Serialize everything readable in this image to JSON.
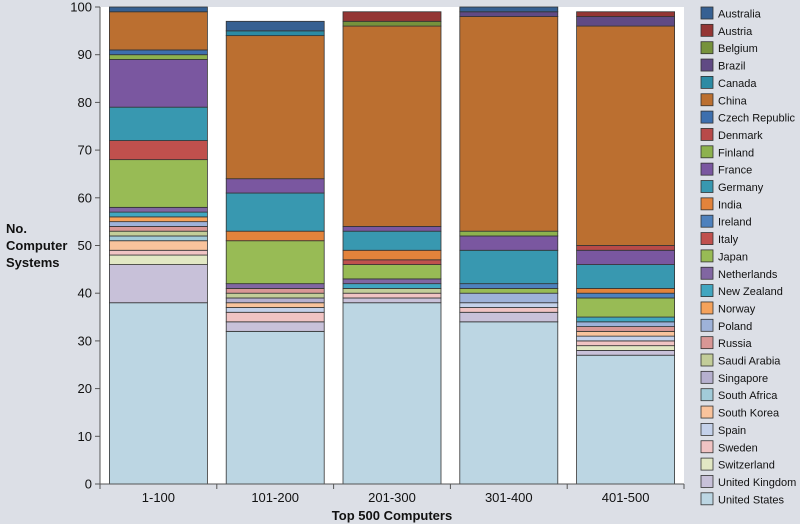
{
  "chart_data": {
    "type": "bar",
    "stacked": true,
    "title": "",
    "xlabel": "Top 500 Computers",
    "ylabel": [
      "No.",
      "Computer",
      "Systems"
    ],
    "ylim": [
      0,
      100
    ],
    "yticks": [
      0,
      10,
      20,
      30,
      40,
      50,
      60,
      70,
      80,
      90,
      100
    ],
    "categories": [
      "1-100",
      "101-200",
      "201-300",
      "301-400",
      "401-500"
    ],
    "legend_position": "right",
    "series": [
      {
        "name": "United States",
        "color": "#bcd6e3",
        "values": [
          38,
          32,
          38,
          34,
          27
        ]
      },
      {
        "name": "United Kingdom",
        "color": "#c8c1d9",
        "values": [
          8,
          2,
          1,
          2,
          1
        ]
      },
      {
        "name": "Switzerland",
        "color": "#e2e8c4",
        "values": [
          2,
          0,
          0,
          0,
          1
        ]
      },
      {
        "name": "Sweden",
        "color": "#f0c3c3",
        "values": [
          1,
          2,
          1,
          1,
          1
        ]
      },
      {
        "name": "Spain",
        "color": "#c4d1ea",
        "values": [
          0,
          1,
          0,
          1,
          1
        ]
      },
      {
        "name": "South Korea",
        "color": "#f9c39c",
        "values": [
          2,
          1,
          0,
          0,
          1
        ]
      },
      {
        "name": "South Africa",
        "color": "#a2cbd9",
        "values": [
          1,
          0,
          0,
          0,
          0
        ]
      },
      {
        "name": "Singapore",
        "color": "#b6b0cf",
        "values": [
          0,
          1,
          0,
          0,
          0
        ]
      },
      {
        "name": "Saudi Arabia",
        "color": "#c3cd99",
        "values": [
          1,
          1,
          1,
          0,
          0
        ]
      },
      {
        "name": "Russia",
        "color": "#d99795",
        "values": [
          1,
          1,
          0,
          0,
          1
        ]
      },
      {
        "name": "Poland",
        "color": "#9eb2d9",
        "values": [
          1,
          0,
          0,
          2,
          1
        ]
      },
      {
        "name": "Norway",
        "color": "#f5a25b",
        "values": [
          1,
          0,
          0,
          0,
          0
        ]
      },
      {
        "name": "New Zealand",
        "color": "#41a6c0",
        "values": [
          1,
          0,
          1,
          0,
          1
        ]
      },
      {
        "name": "Netherlands",
        "color": "#8166a2",
        "values": [
          1,
          1,
          1,
          0,
          0
        ]
      },
      {
        "name": "Japan",
        "color": "#98bb55",
        "values": [
          10,
          9,
          3,
          1,
          4
        ]
      },
      {
        "name": "Italy",
        "color": "#c0504d",
        "values": [
          4,
          0,
          1,
          0,
          0
        ]
      },
      {
        "name": "Ireland",
        "color": "#4e81bd",
        "values": [
          0,
          0,
          0,
          1,
          1
        ]
      },
      {
        "name": "India",
        "color": "#e3833b",
        "values": [
          0,
          2,
          2,
          0,
          1
        ]
      },
      {
        "name": "Germany",
        "color": "#3898b0",
        "values": [
          7,
          8,
          4,
          7,
          5
        ]
      },
      {
        "name": "France",
        "color": "#7a57a0",
        "values": [
          10,
          3,
          1,
          3,
          3
        ]
      },
      {
        "name": "Finland",
        "color": "#8db24e",
        "values": [
          1,
          0,
          0,
          1,
          0
        ]
      },
      {
        "name": "Denmark",
        "color": "#b84a49",
        "values": [
          0,
          0,
          0,
          0,
          1
        ]
      },
      {
        "name": "Czech Republic",
        "color": "#3d6fae",
        "values": [
          1,
          0,
          0,
          0,
          0
        ]
      },
      {
        "name": "China",
        "color": "#bb6f30",
        "values": [
          8,
          30,
          42,
          45,
          46
        ]
      },
      {
        "name": "Canada",
        "color": "#2c8ba4",
        "values": [
          0,
          1,
          0,
          0,
          0
        ]
      },
      {
        "name": "Brazil",
        "color": "#604a84",
        "values": [
          0,
          0,
          0,
          1,
          2
        ]
      },
      {
        "name": "Belgium",
        "color": "#76923c",
        "values": [
          0,
          0,
          1,
          0,
          0
        ]
      },
      {
        "name": "Austria",
        "color": "#943634",
        "values": [
          0,
          0,
          2,
          0,
          1
        ]
      },
      {
        "name": "Australia",
        "color": "#366092",
        "values": [
          1,
          2,
          0,
          1,
          0
        ]
      }
    ],
    "legend_order": [
      "Australia",
      "Austria",
      "Belgium",
      "Brazil",
      "Canada",
      "China",
      "Czech Republic",
      "Denmark",
      "Finland",
      "France",
      "Germany",
      "India",
      "Ireland",
      "Italy",
      "Japan",
      "Netherlands",
      "New Zealand",
      "Norway",
      "Poland",
      "Russia",
      "Saudi Arabia",
      "Singapore",
      "South Africa",
      "South Korea",
      "Spain",
      "Sweden",
      "Switzerland",
      "United Kingdom",
      "United States"
    ]
  }
}
